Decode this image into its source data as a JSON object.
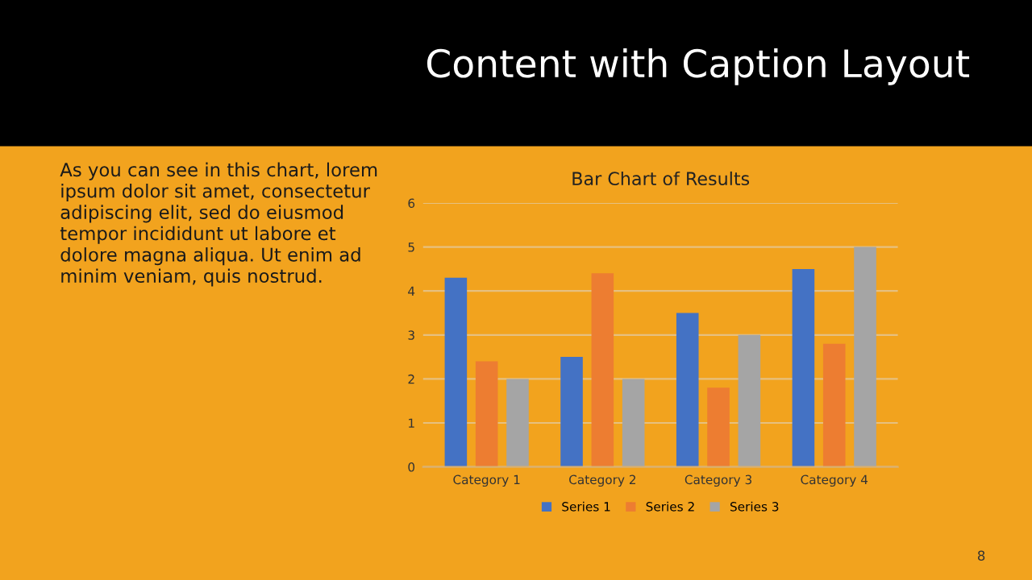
{
  "chart_data": {
    "type": "bar",
    "title": "Bar Chart of Results",
    "categories": [
      "Category 1",
      "Category 2",
      "Category 3",
      "Category 4"
    ],
    "series": [
      {
        "name": "Series 1",
        "color": "#4472c4",
        "values": [
          4.3,
          2.5,
          3.5,
          4.5
        ]
      },
      {
        "name": "Series 2",
        "color": "#ed7d31",
        "values": [
          2.4,
          4.4,
          1.8,
          2.8
        ]
      },
      {
        "name": "Series 3",
        "color": "#a5a5a5",
        "values": [
          2,
          2,
          3,
          5
        ]
      }
    ],
    "ylim": [
      0,
      6
    ],
    "yticks": [
      0,
      1,
      2,
      3,
      4,
      5,
      6
    ],
    "grid": "y",
    "legend": "bottom",
    "annotations": [
      "Content with Caption Layout",
      "As you can see in this chart, lorem\nipsum dolor sit amet, consectetur\nadipiscing elit, sed do eiusmod\ntempor incididunt ut labore et\ndolore magna aliqua. Ut enim ad\nminim veniam, quis nostrud.",
      "8"
    ]
  }
}
